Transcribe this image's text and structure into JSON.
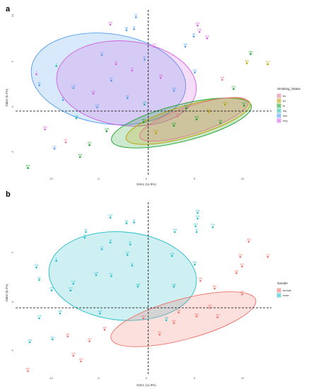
{
  "figure": {
    "panels": [
      {
        "letter": "a",
        "xlabel": "Dim1 (11.9%)",
        "ylabel": "Dim2 (6.2%)",
        "xticks": [
          "-10",
          "-5",
          "0",
          "5",
          "10"
        ],
        "yticks": [
          "10",
          "5",
          "0",
          "-5"
        ],
        "legend": {
          "title": "Smoking_Status",
          "entries": [
            "bs",
            "bv",
            "fs",
            "lsq",
            "lmz",
            "nsq"
          ]
        }
      },
      {
        "letter": "b",
        "xlabel": "Dim1 (11.9%)",
        "ylabel": "Dim2 (6.2%)",
        "xticks": [
          "-10",
          "-5",
          "0",
          "5",
          "10"
        ],
        "yticks": [
          "5",
          "0",
          "-5"
        ],
        "legend": {
          "title": "Gender",
          "entries": [
            "female",
            "male"
          ]
        }
      }
    ]
  },
  "chart_data": [
    {
      "type": "scatter",
      "title": "",
      "xlabel": "Dim1 (11.9%)",
      "ylabel": "Dim2 (6.2%)",
      "xlim": [
        -14,
        13
      ],
      "ylim": [
        -7,
        11
      ],
      "grid": false,
      "legend_position": "right",
      "groups": [
        {
          "name": "bs",
          "color": "#e07b91"
        },
        {
          "name": "bv",
          "color": "#b8a000"
        },
        {
          "name": "fs",
          "color": "#1a9e2a"
        },
        {
          "name": "lsq",
          "color": "#21b6a8"
        },
        {
          "name": "lmz",
          "color": "#4f9bf0"
        },
        {
          "name": "nsq",
          "color": "#d15fe0"
        }
      ],
      "ellipses": [
        {
          "group": "lmz",
          "cx": -4.2,
          "cy": 3.5,
          "rx": 8.2,
          "ry": 4.9,
          "angle": -8
        },
        {
          "group": "nsq",
          "cx": -2.3,
          "cy": 3.0,
          "rx": 7.4,
          "ry": 4.6,
          "angle": -6
        },
        {
          "group": "fs",
          "cx": 3.5,
          "cy": -1.3,
          "rx": 7.6,
          "ry": 2.0,
          "angle": 14
        },
        {
          "group": "bv",
          "cx": 4.2,
          "cy": -1.1,
          "rx": 6.8,
          "ry": 1.7,
          "angle": 16
        },
        {
          "group": "bs",
          "cx": 4.8,
          "cy": -0.9,
          "rx": 6.0,
          "ry": 1.5,
          "angle": 18
        }
      ],
      "points": [
        {
          "label": "56",
          "x": -1.3,
          "y": 10.2,
          "group": "lmz"
        },
        {
          "label": "210",
          "x": -4.0,
          "y": 9.4,
          "group": "nsq"
        },
        {
          "label": "88",
          "x": -2.3,
          "y": 8.8,
          "group": "lmz"
        },
        {
          "label": "91",
          "x": -1.5,
          "y": 8.9,
          "group": "lmz"
        },
        {
          "label": "204",
          "x": 5.2,
          "y": 9.3,
          "group": "nsq"
        },
        {
          "label": "2",
          "x": -9.7,
          "y": 4.9,
          "group": "lsq"
        },
        {
          "label": "273",
          "x": 12.6,
          "y": 5.1,
          "group": "bv"
        },
        {
          "label": "350",
          "x": 10.8,
          "y": 6.2,
          "group": "fs"
        },
        {
          "label": "343",
          "x": 10.4,
          "y": 5.2,
          "group": "bv"
        },
        {
          "label": "347",
          "x": 10.1,
          "y": 0.6,
          "group": "fs"
        },
        {
          "label": "325",
          "x": 7.6,
          "y": -1.3,
          "group": "fs"
        },
        {
          "label": "344",
          "x": -7.2,
          "y": -5.0,
          "group": "fs"
        },
        {
          "label": "430",
          "x": -12.7,
          "y": -6.2,
          "group": "fs"
        },
        {
          "label": "1",
          "x": -11.8,
          "y": 4.0,
          "group": "nsq"
        },
        {
          "label": "64",
          "x": -11.5,
          "y": 2.8,
          "group": "lmz"
        },
        {
          "label": "143",
          "x": -7.9,
          "y": 2.5,
          "group": "lmz"
        },
        {
          "label": "133",
          "x": -5.8,
          "y": 1.9,
          "group": "nsq"
        },
        {
          "label": "45",
          "x": -2.2,
          "y": 1.4,
          "group": "lmz"
        },
        {
          "label": "120",
          "x": -0.4,
          "y": 0.7,
          "group": "lsq"
        },
        {
          "label": "186",
          "x": 1.3,
          "y": 3.6,
          "group": "nsq"
        },
        {
          "label": "226",
          "x": 4.9,
          "y": 4.2,
          "group": "lmz"
        },
        {
          "label": "84",
          "x": 4.8,
          "y": 8.1,
          "group": "lmz"
        },
        {
          "label": "216",
          "x": 5.4,
          "y": 8.6,
          "group": "nsq"
        },
        {
          "label": "203",
          "x": 6.2,
          "y": 7.9,
          "group": "nsq"
        },
        {
          "label": "185",
          "x": 3.9,
          "y": 7.0,
          "group": "lmz"
        },
        {
          "label": "118",
          "x": 0.6,
          "y": 7.0,
          "group": "nsq"
        },
        {
          "label": "30",
          "x": -0.4,
          "y": 5.6,
          "group": "lmz"
        },
        {
          "label": "73",
          "x": -9.0,
          "y": 1.2,
          "group": "lmz"
        },
        {
          "label": "176",
          "x": -5.4,
          "y": 0.4,
          "group": "lmz"
        },
        {
          "label": "165",
          "x": 2.7,
          "y": 2.2,
          "group": "lmz"
        },
        {
          "label": "401",
          "x": 6.4,
          "y": -0.1,
          "group": "bv"
        },
        {
          "label": "418",
          "x": 8.1,
          "y": 0.7,
          "group": "bv"
        },
        {
          "label": "371",
          "x": 9.0,
          "y": 2.4,
          "group": "fs"
        },
        {
          "label": "298",
          "x": 7.8,
          "y": 3.4,
          "group": "bs"
        },
        {
          "label": "300",
          "x": 2.7,
          "y": -1.6,
          "group": "fs"
        },
        {
          "label": "404",
          "x": -0.5,
          "y": -1.2,
          "group": "fs"
        },
        {
          "label": "335",
          "x": -4.4,
          "y": -2.2,
          "group": "fs"
        },
        {
          "label": "311",
          "x": 0.8,
          "y": -2.4,
          "group": "bv"
        },
        {
          "label": "252",
          "x": 3.1,
          "y": -0.6,
          "group": "bs"
        },
        {
          "label": "409",
          "x": 5.1,
          "y": -0.9,
          "group": "fs"
        },
        {
          "label": "261",
          "x": 4.0,
          "y": 0.3,
          "group": "fs"
        },
        {
          "label": "367",
          "x": -8.7,
          "y": -3.4,
          "group": "bs"
        },
        {
          "label": "241",
          "x": -6.2,
          "y": -3.7,
          "group": "fs"
        },
        {
          "label": "183",
          "x": -7.6,
          "y": -0.8,
          "group": "lsq"
        },
        {
          "label": "196",
          "x": -10.9,
          "y": -2.0,
          "group": "nsq"
        },
        {
          "label": "191",
          "x": -9.9,
          "y": -4.1,
          "group": "lmz"
        },
        {
          "label": "51",
          "x": -3.9,
          "y": 3.3,
          "group": "lmz"
        },
        {
          "label": "81",
          "x": -3.4,
          "y": 5.1,
          "group": "nsq"
        },
        {
          "label": "72",
          "x": -4.9,
          "y": 6.1,
          "group": "lmz"
        },
        {
          "label": "17",
          "x": -1.7,
          "y": 4.4,
          "group": "nsq"
        }
      ]
    },
    {
      "type": "scatter",
      "title": "",
      "xlabel": "Dim1 (11.9%)",
      "ylabel": "Dim2 (6.2%)",
      "xlim": [
        -14,
        13
      ],
      "ylim": [
        -7,
        11
      ],
      "grid": false,
      "legend_position": "right",
      "groups": [
        {
          "name": "female",
          "color": "#f07067"
        },
        {
          "name": "male",
          "color": "#22bcc8"
        }
      ],
      "ellipses": [
        {
          "group": "male",
          "cx": -2.7,
          "cy": 3.3,
          "rx": 7.8,
          "ry": 4.6,
          "angle": -5
        },
        {
          "group": "female",
          "cx": 3.7,
          "cy": -1.2,
          "rx": 7.9,
          "ry": 2.1,
          "angle": 15
        }
      ],
      "points": [
        {
          "label": "210",
          "x": -4.0,
          "y": 9.4,
          "group": "male"
        },
        {
          "label": "126",
          "x": 5.2,
          "y": 9.9,
          "group": "male"
        },
        {
          "label": "88",
          "x": -2.3,
          "y": 8.8,
          "group": "male"
        },
        {
          "label": "91",
          "x": -1.5,
          "y": 8.9,
          "group": "male"
        },
        {
          "label": "204",
          "x": 5.2,
          "y": 9.3,
          "group": "male"
        },
        {
          "label": "213",
          "x": 5.0,
          "y": 8.5,
          "group": "male"
        },
        {
          "label": "215",
          "x": 6.8,
          "y": 8.4,
          "group": "male"
        },
        {
          "label": "34",
          "x": 5.1,
          "y": 7.9,
          "group": "male"
        },
        {
          "label": "106",
          "x": 2.8,
          "y": 7.9,
          "group": "male"
        },
        {
          "label": "2",
          "x": -9.7,
          "y": 4.9,
          "group": "male"
        },
        {
          "label": "201",
          "x": -11.8,
          "y": 4.2,
          "group": "male"
        },
        {
          "label": "64",
          "x": -11.5,
          "y": 2.9,
          "group": "male"
        },
        {
          "label": "143",
          "x": -7.9,
          "y": 2.5,
          "group": "male"
        },
        {
          "label": "172",
          "x": -8.2,
          "y": 1.8,
          "group": "male"
        },
        {
          "label": "225",
          "x": -10.2,
          "y": 1.8,
          "group": "male"
        },
        {
          "label": "72",
          "x": -4.9,
          "y": 6.1,
          "group": "male"
        },
        {
          "label": "19",
          "x": -4.0,
          "y": 6.8,
          "group": "male"
        },
        {
          "label": "92",
          "x": -6.7,
          "y": 7.3,
          "group": "male"
        },
        {
          "label": "78",
          "x": -6.6,
          "y": 7.9,
          "group": "male"
        },
        {
          "label": "57",
          "x": -1.9,
          "y": 6.6,
          "group": "male"
        },
        {
          "label": "137",
          "x": -2.2,
          "y": 5.5,
          "group": "male"
        },
        {
          "label": "17",
          "x": -1.7,
          "y": 4.4,
          "group": "male"
        },
        {
          "label": "51",
          "x": -3.9,
          "y": 3.3,
          "group": "male"
        },
        {
          "label": "129",
          "x": -5.5,
          "y": 3.4,
          "group": "male"
        },
        {
          "label": "168",
          "x": -1.1,
          "y": 2.2,
          "group": "male"
        },
        {
          "label": "226",
          "x": 4.9,
          "y": 4.5,
          "group": "male"
        },
        {
          "label": "165",
          "x": 2.7,
          "y": 2.2,
          "group": "male"
        },
        {
          "label": "178",
          "x": 2.5,
          "y": 5.4,
          "group": "male"
        },
        {
          "label": "182",
          "x": -9.3,
          "y": -0.6,
          "group": "male"
        },
        {
          "label": "179",
          "x": -11.5,
          "y": -1.1,
          "group": "male"
        },
        {
          "label": "144",
          "x": -12.5,
          "y": -3.6,
          "group": "male"
        },
        {
          "label": "191",
          "x": -10.1,
          "y": -3.3,
          "group": "male"
        },
        {
          "label": "100",
          "x": -5.1,
          "y": -0.6,
          "group": "male"
        },
        {
          "label": "196",
          "x": 1.9,
          "y": -1.3,
          "group": "male"
        },
        {
          "label": "342",
          "x": 10.6,
          "y": 6.9,
          "group": "female"
        },
        {
          "label": "344",
          "x": 9.7,
          "y": 5.3,
          "group": "female"
        },
        {
          "label": "273",
          "x": 12.6,
          "y": 5.3,
          "group": "female"
        },
        {
          "label": "347",
          "x": 9.9,
          "y": 4.3,
          "group": "female"
        },
        {
          "label": "360",
          "x": 9.3,
          "y": 3.6,
          "group": "female"
        },
        {
          "label": "296",
          "x": 5.5,
          "y": 2.8,
          "group": "female"
        },
        {
          "label": "380",
          "x": 7.0,
          "y": 2.0,
          "group": "female"
        },
        {
          "label": "336",
          "x": 9.9,
          "y": 1.4,
          "group": "female"
        },
        {
          "label": "325",
          "x": 7.3,
          "y": -1.0,
          "group": "female"
        },
        {
          "label": "401",
          "x": 6.5,
          "y": 0.0,
          "group": "female"
        },
        {
          "label": "300",
          "x": 2.7,
          "y": -1.6,
          "group": "female"
        },
        {
          "label": "404",
          "x": -0.5,
          "y": -1.1,
          "group": "female"
        },
        {
          "label": "311",
          "x": 1.2,
          "y": -2.8,
          "group": "female"
        },
        {
          "label": "367",
          "x": -8.5,
          "y": -3.0,
          "group": "female"
        },
        {
          "label": "241",
          "x": -6.2,
          "y": -3.5,
          "group": "female"
        },
        {
          "label": "370",
          "x": -7.9,
          "y": -5.0,
          "group": "female"
        },
        {
          "label": "345",
          "x": -7.1,
          "y": -5.6,
          "group": "female"
        },
        {
          "label": "430",
          "x": -12.7,
          "y": -6.6,
          "group": "female"
        },
        {
          "label": "335",
          "x": -4.6,
          "y": -2.3,
          "group": "female"
        },
        {
          "label": "252",
          "x": 3.2,
          "y": -0.5,
          "group": "female"
        },
        {
          "label": "409",
          "x": 5.1,
          "y": -0.9,
          "group": "female"
        }
      ]
    }
  ]
}
